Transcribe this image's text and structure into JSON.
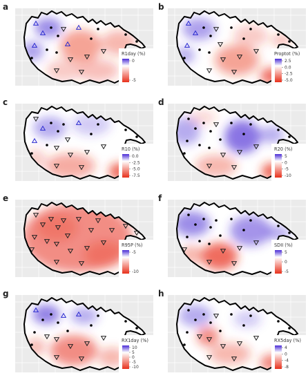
{
  "figure": {
    "panels": [
      {
        "id": "a",
        "letter": "a",
        "legend_title": "R1day (%)",
        "ticks": [
          "0",
          "-5"
        ]
      },
      {
        "id": "b",
        "letter": "b",
        "legend_title": "Proptot (%)",
        "ticks": [
          "2.5",
          "0.0",
          "-2.5",
          "-5.0"
        ]
      },
      {
        "id": "c",
        "letter": "c",
        "legend_title": "R10 (%)",
        "ticks": [
          "0.0",
          "-2.5",
          "-5.0",
          "-7.5"
        ]
      },
      {
        "id": "d",
        "letter": "d",
        "legend_title": "R20 (%)",
        "ticks": [
          "5",
          "0",
          "-5",
          "-10"
        ]
      },
      {
        "id": "e",
        "letter": "e",
        "legend_title": "R95P (%)",
        "ticks": [
          "-5",
          "-10"
        ]
      },
      {
        "id": "f",
        "letter": "f",
        "legend_title": "SDII (%)",
        "ticks": [
          "5",
          "0",
          "-5"
        ]
      },
      {
        "id": "g",
        "letter": "g",
        "legend_title": "RX1day (%)",
        "ticks": [
          "10",
          "5",
          "0",
          "-5",
          "-10"
        ]
      },
      {
        "id": "h",
        "letter": "h",
        "legend_title": "RX5day (%)",
        "ticks": [
          "4",
          "0",
          "-4",
          "-8"
        ]
      }
    ]
  },
  "colors": {
    "panel_background": "#ebebeb",
    "grid": "#ffffff",
    "positive": "#4b2dd6",
    "neutral": "#ffffff",
    "negative": "#e8311c",
    "boundary": "#000000"
  }
}
